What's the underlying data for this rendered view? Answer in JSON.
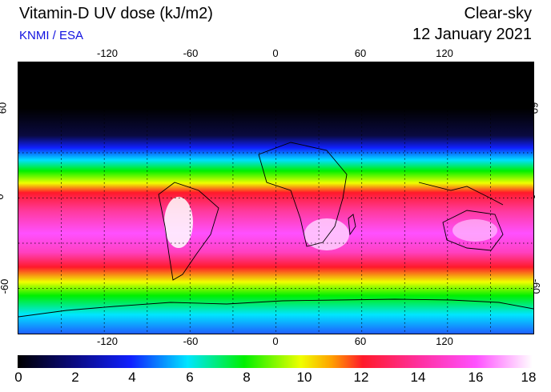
{
  "header": {
    "title": "Vitamin-D UV dose (kJ/m2)",
    "source": "KNMI / ESA",
    "sky_condition": "Clear-sky",
    "date": "12 January 2021"
  },
  "map": {
    "projection": "equirectangular",
    "lon_range": [
      -180,
      180
    ],
    "lat_range": [
      -90,
      90
    ],
    "lon_ticks": [
      "-120",
      "-60",
      "0",
      "60",
      "120"
    ],
    "lat_ticks": [
      "60",
      "0",
      "-60"
    ],
    "grid": "dotted, every 30 degrees",
    "band_colors": {
      "polar_night": "#000000",
      "low": "#1a2cff",
      "cyan": "#00e6ff",
      "green": "#00f000",
      "yellow": "#f0ff00",
      "red": "#ff1a2a",
      "magenta": "#ff40ff",
      "white": "#ffffff"
    }
  },
  "colorbar": {
    "labels": [
      "0",
      "2",
      "4",
      "6",
      "8",
      "10",
      "12",
      "14",
      "16",
      "18"
    ],
    "min": 0,
    "max": 18,
    "unit": "kJ/m2"
  }
}
